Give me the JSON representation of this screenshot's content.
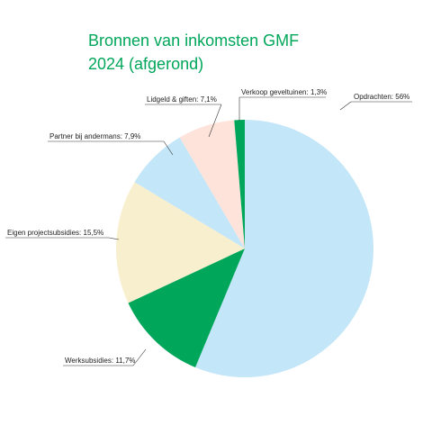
{
  "chart_data": {
    "type": "pie",
    "title": "Bronnen van inkomsten GMF 2024 (afgerond)",
    "labels": [
      "Opdrachten: 56%",
      "Werksubsidies: 11,7%",
      "Eigen projectsubsidies: 15,5%",
      "Partner bij andermans: 7,9%",
      "Lidgeld & giften: 7,1%",
      "Verkoop geveltuinen: 1,3%"
    ],
    "values": [
      56,
      11.7,
      15.5,
      7.9,
      7.1,
      1.3
    ],
    "colors": [
      "#c4e6f9",
      "#00a65a",
      "#f8efcf",
      "#c4e6f9",
      "#fde3da",
      "#00a65a"
    ]
  }
}
